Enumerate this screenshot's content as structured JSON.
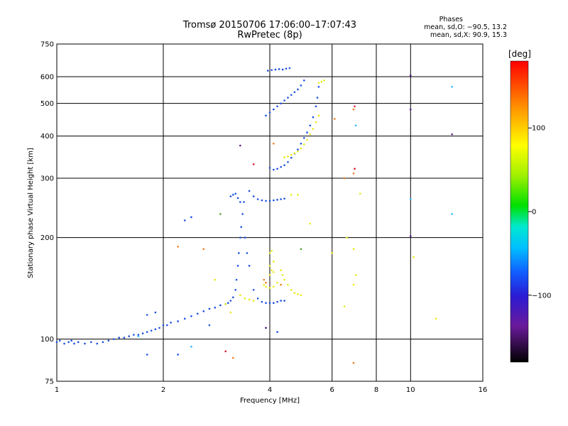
{
  "header": {
    "title": "Tromsø 20150706 17:06:00–17:07:43",
    "subtitle": "RwPretec (8p)"
  },
  "phases": {
    "title": "Phases",
    "line1": "mean, sd,O: −90.5, 13.2",
    "line2": "mean, sd,X:  90.9, 15.3"
  },
  "colorbar": {
    "unit": "[deg]",
    "ticks": [
      "100",
      "0",
      "−100"
    ],
    "tick_values": [
      100,
      0,
      -100
    ],
    "range": [
      -180,
      180
    ]
  },
  "chart_data": {
    "type": "scatter",
    "xlabel": "Frequency [MHz]",
    "ylabel": "Stationary phase Virtual Height [km]",
    "xscale": "log",
    "yscale": "log",
    "xlim": [
      1,
      16
    ],
    "ylim": [
      75,
      750
    ],
    "xticks": [
      1,
      2,
      4,
      6,
      8,
      10,
      16
    ],
    "xtick_labels": [
      "1",
      "2",
      "4",
      "6",
      "8",
      "10",
      "16"
    ],
    "yticks": [
      75,
      100,
      200,
      300,
      400,
      500,
      600,
      750
    ],
    "ytick_labels": [
      "75",
      "100",
      "200",
      "300",
      "400",
      "500",
      "600",
      "750"
    ],
    "grid": true,
    "series": [
      {
        "color": "#1a4fe0",
        "points": [
          [
            1.0,
            98
          ],
          [
            1.02,
            99
          ],
          [
            1.05,
            97
          ],
          [
            1.08,
            98
          ],
          [
            1.1,
            99
          ],
          [
            1.12,
            97
          ],
          [
            1.15,
            98
          ],
          [
            1.2,
            97
          ],
          [
            1.25,
            98
          ],
          [
            1.3,
            97
          ],
          [
            1.35,
            98
          ],
          [
            1.4,
            99
          ],
          [
            1.45,
            100
          ],
          [
            1.5,
            101
          ],
          [
            1.55,
            101
          ],
          [
            1.6,
            102
          ],
          [
            1.65,
            103
          ],
          [
            1.7,
            103
          ],
          [
            1.75,
            104
          ],
          [
            1.8,
            105
          ],
          [
            1.85,
            106
          ],
          [
            1.9,
            107
          ],
          [
            1.95,
            108
          ],
          [
            2.0,
            110
          ],
          [
            2.05,
            110
          ],
          [
            2.1,
            112
          ],
          [
            2.2,
            113
          ],
          [
            2.3,
            115
          ],
          [
            2.4,
            117
          ],
          [
            2.5,
            119
          ],
          [
            2.6,
            121
          ],
          [
            2.7,
            123
          ],
          [
            2.8,
            124
          ],
          [
            2.9,
            126
          ],
          [
            3.0,
            127
          ],
          [
            3.05,
            128
          ],
          [
            3.1,
            130
          ],
          [
            3.15,
            133
          ],
          [
            3.2,
            140
          ],
          [
            3.22,
            150
          ],
          [
            3.25,
            165
          ],
          [
            3.27,
            180
          ],
          [
            3.3,
            200
          ],
          [
            3.32,
            215
          ],
          [
            3.35,
            235
          ],
          [
            3.38,
            255
          ],
          [
            3.1,
            265
          ],
          [
            3.15,
            268
          ],
          [
            3.2,
            270
          ],
          [
            3.25,
            262
          ],
          [
            3.3,
            255
          ],
          [
            3.4,
            200
          ],
          [
            3.45,
            180
          ],
          [
            3.5,
            165
          ],
          [
            3.6,
            140
          ],
          [
            3.7,
            132
          ],
          [
            3.8,
            129
          ],
          [
            3.9,
            128
          ],
          [
            4.0,
            128
          ],
          [
            4.1,
            128
          ],
          [
            4.2,
            129
          ],
          [
            4.3,
            130
          ],
          [
            4.4,
            130
          ],
          [
            3.5,
            275
          ],
          [
            3.6,
            265
          ],
          [
            3.7,
            260
          ],
          [
            3.8,
            258
          ],
          [
            3.9,
            257
          ],
          [
            4.0,
            257
          ],
          [
            4.1,
            258
          ],
          [
            4.2,
            259
          ],
          [
            4.3,
            260
          ],
          [
            4.4,
            261
          ],
          [
            4.0,
            322
          ],
          [
            4.1,
            318
          ],
          [
            4.2,
            320
          ],
          [
            4.3,
            324
          ],
          [
            4.4,
            328
          ],
          [
            4.5,
            335
          ],
          [
            4.6,
            345
          ],
          [
            4.7,
            355
          ],
          [
            4.8,
            365
          ],
          [
            4.9,
            380
          ],
          [
            5.0,
            395
          ],
          [
            5.1,
            410
          ],
          [
            5.2,
            430
          ],
          [
            5.3,
            455
          ],
          [
            5.4,
            490
          ],
          [
            5.45,
            520
          ],
          [
            5.5,
            560
          ],
          [
            3.9,
            460
          ],
          [
            4.0,
            470
          ],
          [
            4.1,
            480
          ],
          [
            4.2,
            490
          ],
          [
            4.3,
            500
          ],
          [
            4.4,
            510
          ],
          [
            4.5,
            520
          ],
          [
            4.6,
            530
          ],
          [
            4.7,
            540
          ],
          [
            4.8,
            550
          ],
          [
            4.9,
            565
          ],
          [
            5.0,
            585
          ],
          [
            3.95,
            625
          ],
          [
            4.05,
            628
          ],
          [
            4.15,
            630
          ],
          [
            4.25,
            632
          ],
          [
            4.35,
            630
          ],
          [
            4.45,
            634
          ],
          [
            4.55,
            636
          ],
          [
            2.3,
            225
          ],
          [
            2.4,
            230
          ],
          [
            1.8,
            118
          ],
          [
            1.9,
            120
          ],
          [
            2.7,
            110
          ],
          [
            3.9,
            108
          ],
          [
            4.2,
            105
          ],
          [
            1.8,
            90
          ],
          [
            2.2,
            90
          ]
        ]
      },
      {
        "color": "#e6ea12",
        "points": [
          [
            3.3,
            135
          ],
          [
            3.4,
            132
          ],
          [
            3.5,
            131
          ],
          [
            3.6,
            130
          ],
          [
            3.0,
            127
          ],
          [
            3.1,
            120
          ],
          [
            3.85,
            145
          ],
          [
            3.9,
            143
          ],
          [
            4.0,
            142
          ],
          [
            4.1,
            143
          ],
          [
            4.2,
            147
          ],
          [
            4.0,
            155
          ],
          [
            4.05,
            160
          ],
          [
            4.1,
            158
          ],
          [
            4.0,
            165
          ],
          [
            4.1,
            170
          ],
          [
            4.3,
            160
          ],
          [
            4.35,
            155
          ],
          [
            4.4,
            150
          ],
          [
            4.5,
            145
          ],
          [
            4.6,
            140
          ],
          [
            4.7,
            137
          ],
          [
            4.8,
            136
          ],
          [
            4.9,
            135
          ],
          [
            4.0,
            180
          ],
          [
            4.05,
            183
          ],
          [
            4.4,
            346
          ],
          [
            4.5,
            348
          ],
          [
            4.6,
            352
          ],
          [
            4.7,
            356
          ],
          [
            4.8,
            360
          ],
          [
            4.9,
            368
          ],
          [
            5.0,
            378
          ],
          [
            5.1,
            390
          ],
          [
            5.2,
            405
          ],
          [
            5.3,
            420
          ],
          [
            5.4,
            440
          ],
          [
            5.5,
            460
          ],
          [
            5.5,
            575
          ],
          [
            5.6,
            580
          ],
          [
            5.7,
            585
          ],
          [
            4.6,
            268
          ],
          [
            4.8,
            268
          ],
          [
            7.2,
            270
          ],
          [
            6.6,
            200
          ],
          [
            6.9,
            145
          ],
          [
            7.0,
            155
          ],
          [
            6.5,
            125
          ],
          [
            6.9,
            185
          ],
          [
            6.0,
            180
          ],
          [
            10.2,
            175
          ],
          [
            11.8,
            115
          ],
          [
            5.2,
            220
          ],
          [
            2.8,
            150
          ]
        ]
      },
      {
        "color": "#f07818",
        "points": [
          [
            3.85,
            150
          ],
          [
            3.9,
            147
          ],
          [
            4.3,
            145
          ],
          [
            2.2,
            188
          ],
          [
            2.6,
            185
          ],
          [
            3.15,
            88
          ],
          [
            6.1,
            450
          ],
          [
            6.9,
            480
          ],
          [
            6.9,
            310
          ],
          [
            6.5,
            300
          ],
          [
            4.1,
            380
          ],
          [
            6.9,
            85
          ]
        ]
      },
      {
        "color": "#d21e2e",
        "points": [
          [
            3.6,
            330
          ],
          [
            3.0,
            92
          ],
          [
            6.95,
            490
          ],
          [
            6.95,
            320
          ]
        ]
      },
      {
        "color": "#2ab4ff",
        "points": [
          [
            13.1,
            560
          ],
          [
            13.1,
            235
          ],
          [
            10.0,
            260
          ],
          [
            2.4,
            95
          ],
          [
            1.7,
            102
          ],
          [
            7.0,
            430
          ]
        ]
      },
      {
        "color": "#4aa02a",
        "points": [
          [
            2.9,
            235
          ],
          [
            4.9,
            185
          ]
        ]
      },
      {
        "color": "#5a1a8a",
        "points": [
          [
            10.0,
            605
          ],
          [
            10.0,
            480
          ],
          [
            13.1,
            405
          ],
          [
            10.0,
            202
          ],
          [
            3.3,
            375
          ],
          [
            3.9,
            108
          ]
        ]
      }
    ]
  }
}
